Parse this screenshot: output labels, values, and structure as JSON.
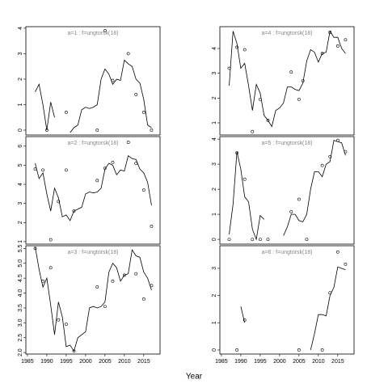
{
  "xlabel": "Year",
  "chart_data": [
    {
      "type": "line",
      "title": "a=1 : f=ungtorsk(18)",
      "x": [
        1987,
        1988,
        1989,
        1990,
        1991,
        1992,
        1993,
        1994,
        1995,
        1996,
        1997,
        1998,
        1999,
        2000,
        2001,
        2002,
        2003,
        2004,
        2005,
        2006,
        2007,
        2008,
        2009,
        2010,
        2011,
        2012,
        2013,
        2014,
        2015,
        2016,
        2017
      ],
      "values": [
        1.5,
        1.8,
        1.0,
        0.0,
        1.1,
        0.5,
        null,
        null,
        null,
        -0.1,
        0.1,
        0.2,
        0.8,
        0.9,
        0.85,
        0.9,
        1.0,
        2.0,
        2.4,
        2.2,
        1.8,
        2.0,
        1.95,
        2.75,
        2.6,
        2.5,
        2.0,
        1.85,
        1.2,
        0.2,
        0.1
      ],
      "points": {
        "x": [
          1990,
          1995,
          2003,
          2005,
          2007,
          2011,
          2013,
          2015,
          2017
        ],
        "values": [
          0,
          0.7,
          0,
          3.9,
          1.95,
          3.0,
          1.4,
          0.7,
          0
        ]
      },
      "color": "#000000",
      "xlim": [
        1984.6,
        2019.2
      ],
      "ylim": [
        -0.19,
        4.06
      ],
      "yticks": [
        0,
        1,
        2,
        3,
        4
      ]
    },
    {
      "type": "line",
      "title": "a=2 : f=ungtorsk(18)",
      "x": [
        1987,
        1988,
        1989,
        1990,
        1991,
        1992,
        1993,
        1994,
        1995,
        1996,
        1997,
        1998,
        1999,
        2000,
        2001,
        2002,
        2003,
        2004,
        2005,
        2006,
        2007,
        2008,
        2009,
        2010,
        2011,
        2012,
        2013,
        2014,
        2015,
        2016,
        2017
      ],
      "values": [
        5.1,
        4.3,
        4.6,
        3.5,
        2.6,
        3.8,
        3.3,
        2.3,
        2.4,
        2.1,
        2.6,
        2.7,
        2.8,
        3.5,
        3.6,
        3.55,
        3.6,
        3.8,
        4.8,
        5.1,
        5.0,
        4.5,
        4.75,
        4.7,
        5.5,
        5.35,
        5.3,
        4.8,
        4.6,
        4.1,
        2.9
      ],
      "points": {
        "x": [
          1987,
          1989,
          1991,
          1993,
          1995,
          1997,
          2003,
          2005,
          2007,
          2011,
          2013,
          2015,
          2017
        ],
        "values": [
          4.8,
          4.75,
          1.1,
          3.1,
          4.75,
          2.6,
          4.2,
          4.85,
          5.15,
          6.2,
          5.1,
          3.7,
          1.8
        ]
      },
      "color": "#000000",
      "xlim": [
        1984.6,
        2019.2
      ],
      "ylim": [
        0.87,
        6.5
      ],
      "yticks": [
        1,
        2,
        3,
        4,
        5,
        6
      ]
    },
    {
      "type": "line",
      "title": "a=3 : f=ungtorsk(18)",
      "x": [
        1987,
        1988,
        1989,
        1990,
        1991,
        1992,
        1993,
        1994,
        1995,
        1996,
        1997,
        1998,
        1999,
        2000,
        2001,
        2002,
        2003,
        2004,
        2005,
        2006,
        2007,
        2008,
        2009,
        2010,
        2011,
        2012,
        2013,
        2014,
        2015,
        2016,
        2017
      ],
      "values": [
        5.55,
        4.8,
        4.2,
        4.5,
        3.6,
        2.6,
        3.7,
        3.2,
        2.2,
        2.25,
        2.05,
        2.5,
        2.6,
        2.7,
        3.5,
        3.55,
        3.5,
        3.55,
        3.7,
        4.7,
        5.0,
        4.85,
        4.4,
        4.6,
        4.65,
        5.45,
        5.25,
        5.2,
        4.7,
        4.5,
        4.1
      ],
      "points": {
        "x": [
          1987,
          1989,
          1991,
          1993,
          1995,
          1997,
          2003,
          2005,
          2007,
          2010,
          2013,
          2015,
          2017
        ],
        "values": [
          5.5,
          4.4,
          4.85,
          3.1,
          2.95,
          2.05,
          4.2,
          3.55,
          4.4,
          4.6,
          4.65,
          3.8,
          4.25
        ]
      },
      "color": "#000000",
      "xlim": [
        1984.6,
        2019.2
      ],
      "ylim": [
        1.95,
        5.59
      ],
      "yticks": [
        {
          "value": 2,
          "label": "2.0"
        },
        2.5,
        {
          "value": 3,
          "label": "3.0"
        },
        3.5,
        {
          "value": 4,
          "label": "4.0"
        },
        4.5,
        {
          "value": 5,
          "label": "5.0"
        },
        5.5
      ],
      "xticks": [
        1985,
        1990,
        1995,
        2000,
        2005,
        2010,
        2015
      ]
    },
    {
      "type": "line",
      "title": "a=4 : f=ungtorsk(18)",
      "x": [
        1987,
        1988,
        1989,
        1990,
        1991,
        1992,
        1993,
        1994,
        1995,
        1996,
        1997,
        1998,
        1999,
        2000,
        2001,
        2002,
        2003,
        2004,
        2005,
        2006,
        2007,
        2008,
        2009,
        2010,
        2011,
        2012,
        2013,
        2014,
        2015,
        2016,
        2017
      ],
      "values": [
        2.5,
        4.7,
        4.2,
        3.2,
        3.4,
        2.5,
        1.5,
        2.55,
        2.2,
        1.3,
        1.1,
        0.85,
        1.5,
        1.6,
        1.8,
        2.45,
        2.45,
        2.35,
        2.3,
        2.6,
        3.5,
        3.95,
        3.85,
        3.45,
        3.8,
        3.85,
        4.7,
        4.45,
        4.45,
        4.0,
        3.8
      ],
      "points": {
        "x": [
          1987,
          1989,
          1991,
          1993,
          1995,
          1997,
          2003,
          2005,
          2006,
          2011,
          2013,
          2015,
          2017
        ],
        "values": [
          3.2,
          4.05,
          3.95,
          0.65,
          1.95,
          1.1,
          3.05,
          1.95,
          2.7,
          3.8,
          4.65,
          4.1,
          4.35
        ]
      },
      "color": "#000000",
      "xlim": [
        1984.6,
        2019.2
      ],
      "ylim": [
        0.51,
        4.88
      ],
      "yticks": [
        1,
        2,
        3,
        4
      ]
    },
    {
      "type": "line",
      "title": "a=5 : f=ungtorsk(18)",
      "x": [
        1987,
        1988,
        1989,
        1990,
        1991,
        1992,
        1993,
        1994,
        1995,
        1996,
        1997,
        1998,
        1999,
        2000,
        2001,
        2002,
        2003,
        2004,
        2005,
        2006,
        2007,
        2008,
        2009,
        2010,
        2011,
        2012,
        2013,
        2014,
        2015,
        2016,
        2017
      ],
      "values": [
        0.2,
        1.4,
        3.5,
        2.8,
        1.7,
        1.5,
        0.4,
        0.0,
        0.95,
        0.8,
        null,
        null,
        null,
        null,
        0.15,
        0.5,
        1.0,
        1.0,
        0.75,
        0.7,
        1.0,
        2.0,
        2.7,
        2.7,
        2.5,
        3.0,
        3.1,
        3.95,
        3.9,
        3.85,
        3.35
      ],
      "points": {
        "x": [
          1987,
          1989,
          1991,
          1993,
          1995,
          1997,
          2003,
          2005,
          2007,
          2011,
          2013,
          2015,
          2017
        ],
        "values": [
          0,
          3.45,
          2.4,
          0,
          0,
          0,
          1.1,
          1.6,
          0,
          2.95,
          3.3,
          3.95,
          3.5
        ]
      },
      "color": "#000000",
      "xlim": [
        1984.6,
        2019.2
      ],
      "ylim": [
        -0.19,
        4.1
      ],
      "yticks": [
        0,
        1,
        2,
        3,
        4
      ]
    },
    {
      "type": "line",
      "title": "a=6 : f=ungtorsk(18)",
      "x": [
        1987,
        1988,
        1989,
        1990,
        1991,
        1992,
        1993,
        1994,
        1995,
        1996,
        1997,
        1998,
        1999,
        2000,
        2001,
        2002,
        2003,
        2004,
        2005,
        2006,
        2007,
        2008,
        2009,
        2010,
        2011,
        2012,
        2013,
        2014,
        2015,
        2016,
        2017
      ],
      "values": [
        null,
        null,
        null,
        1.6,
        1.0,
        null,
        null,
        null,
        null,
        null,
        null,
        null,
        null,
        null,
        null,
        null,
        null,
        null,
        null,
        null,
        null,
        0.0,
        0.6,
        1.3,
        1.3,
        1.25,
        2.0,
        2.3,
        3.05,
        3.0,
        2.95
      ],
      "points": {
        "x": [
          1989,
          1991,
          2005,
          2011,
          2013,
          2015,
          2017
        ],
        "values": [
          0,
          1.1,
          0,
          0,
          2.1,
          3.6,
          3.15
        ]
      },
      "color": "#000000",
      "xlim": [
        1984.6,
        2019.2
      ],
      "ylim": [
        -0.15,
        3.83
      ],
      "yticks": [
        0,
        1,
        2,
        3
      ],
      "xticks": [
        1985,
        1990,
        1995,
        2000,
        2005,
        2010,
        2015
      ]
    }
  ]
}
